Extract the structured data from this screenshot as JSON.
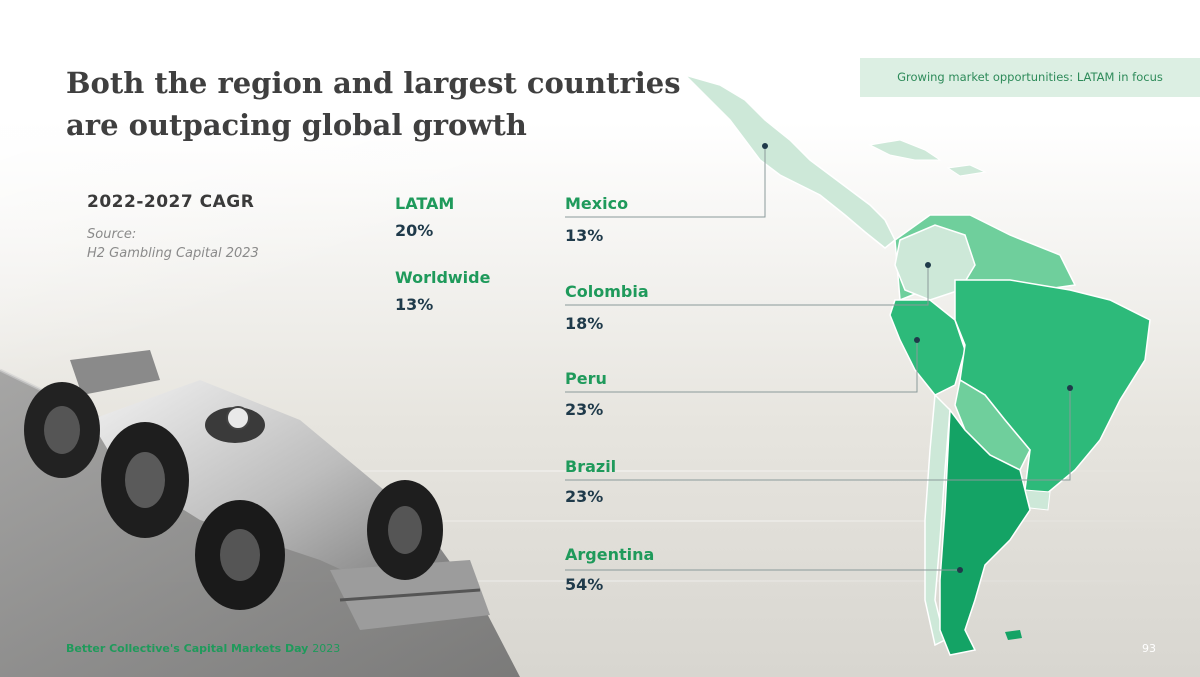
{
  "header": {
    "title": "Both the region and largest countries are outpacing global growth",
    "tag": "Growing market opportunities: LATAM in focus"
  },
  "cagr": {
    "heading": "2022-2027 CAGR",
    "source_label": "Source:",
    "source": "H2 Gambling Capital 2023"
  },
  "summary": [
    {
      "label": "LATAM",
      "value": "20%"
    },
    {
      "label": "Worldwide",
      "value": "13%"
    }
  ],
  "countries": [
    {
      "name": "Mexico",
      "value": "13%"
    },
    {
      "name": "Colombia",
      "value": "18%"
    },
    {
      "name": "Peru",
      "value": "23%"
    },
    {
      "name": "Brazil",
      "value": "23%"
    },
    {
      "name": "Argentina",
      "value": "54%"
    }
  ],
  "footer": {
    "text": "Better Collective's Capital Markets Day",
    "year": "2023",
    "page": "93"
  },
  "colors": {
    "accent_green": "#1f9a5b",
    "map_light": "#cde8d8",
    "map_mid": "#6fcf9c",
    "map_dark": "#14a365",
    "dark_text": "#1f3a4a"
  },
  "icons": [
    "race-car-image",
    "latam-map"
  ]
}
